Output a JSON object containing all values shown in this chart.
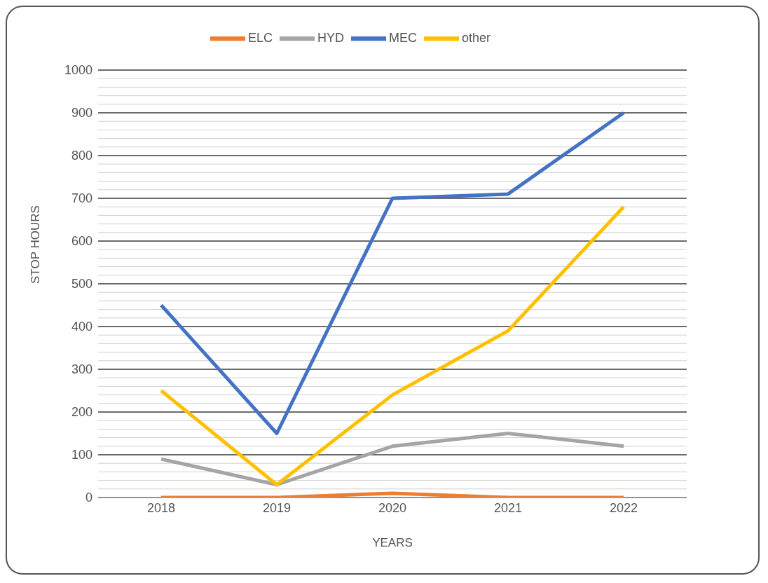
{
  "chart_data": {
    "type": "line",
    "xlabel": "YEARS",
    "ylabel": "STOP HOURS",
    "categories": [
      "2018",
      "2019",
      "2020",
      "2021",
      "2022"
    ],
    "series": [
      {
        "name": "MEC",
        "color": "#4472c4",
        "values": [
          450,
          150,
          700,
          710,
          900
        ]
      },
      {
        "name": "ELC",
        "color": "#ed7d31",
        "values": [
          0,
          0,
          10,
          0,
          0
        ]
      },
      {
        "name": "HYD",
        "color": "#a5a5a5",
        "values": [
          90,
          30,
          120,
          150,
          120
        ]
      },
      {
        "name": "other",
        "color": "#ffc000",
        "values": [
          250,
          30,
          240,
          390,
          680
        ]
      }
    ],
    "ylim": [
      0,
      1000
    ],
    "yticks": [
      0,
      {
        "value": 20,
        "label": null
      },
      {
        "value": 40,
        "label": null
      },
      {
        "value": 60,
        "label": null
      },
      {
        "value": 80,
        "label": null
      },
      100,
      {
        "value": 120,
        "label": null
      },
      {
        "value": 140,
        "label": null
      },
      {
        "value": 160,
        "label": null
      },
      {
        "value": 180,
        "label": null
      },
      200,
      {
        "value": 220,
        "label": null
      },
      {
        "value": 240,
        "label": null
      },
      {
        "value": 260,
        "label": null
      },
      {
        "value": 280,
        "label": null
      },
      300,
      {
        "value": 320,
        "label": null
      },
      {
        "value": 340,
        "label": null
      },
      {
        "value": 360,
        "label": null
      },
      {
        "value": 380,
        "label": null
      },
      400,
      {
        "value": 420,
        "label": null
      },
      {
        "value": 440,
        "label": null
      },
      {
        "value": 460,
        "label": null
      },
      {
        "value": 480,
        "label": null
      },
      500,
      {
        "value": 520,
        "label": null
      },
      {
        "value": 540,
        "label": null
      },
      {
        "value": 560,
        "label": null
      },
      {
        "value": 580,
        "label": null
      },
      600,
      {
        "value": 620,
        "label": null
      },
      {
        "value": 640,
        "label": null
      },
      {
        "value": 660,
        "label": null
      },
      {
        "value": 680,
        "label": null
      },
      700,
      {
        "value": 720,
        "label": null
      },
      {
        "value": 740,
        "label": null
      },
      {
        "value": 760,
        "label": null
      },
      {
        "value": 780,
        "label": null
      },
      800,
      {
        "value": 820,
        "label": null
      },
      {
        "value": 840,
        "label": null
      },
      {
        "value": 860,
        "label": null
      },
      {
        "value": 880,
        "label": null
      },
      900,
      {
        "value": 920,
        "label": null
      },
      {
        "value": 940,
        "label": null
      },
      {
        "value": 960,
        "label": null
      },
      {
        "value": 980,
        "label": null
      },
      1000
    ],
    "grid": "y",
    "legend": "top",
    "marker": "none",
    "line_style": "solid"
  }
}
